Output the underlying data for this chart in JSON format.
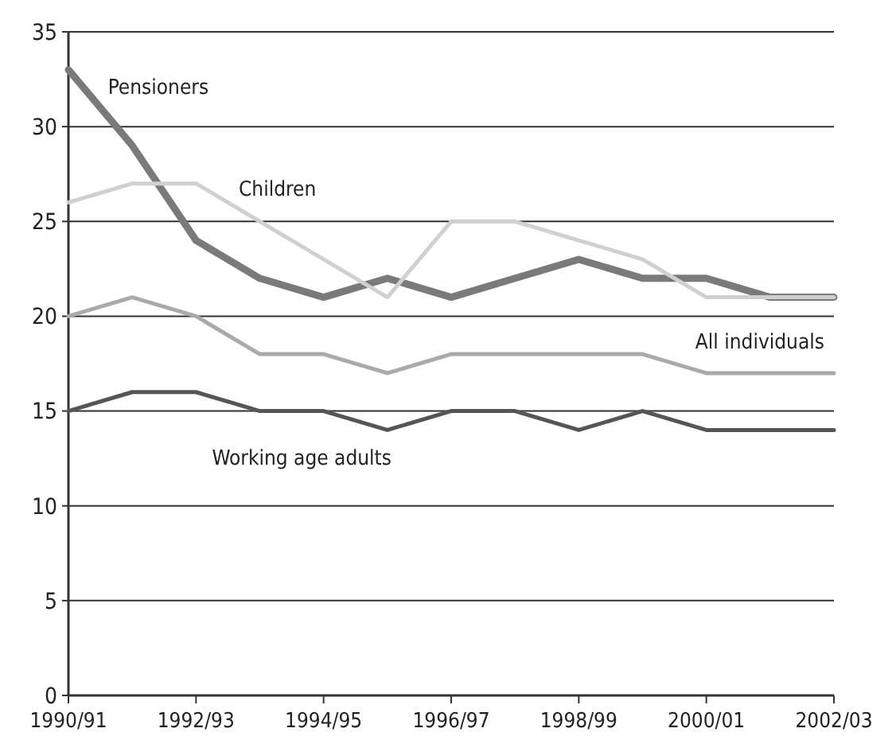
{
  "chart_data": {
    "type": "line",
    "categories": [
      "1990/91",
      null,
      "1992/93",
      null,
      "1994/95",
      null,
      "1996/97",
      null,
      "1998/99",
      null,
      "2000/01",
      null,
      "2002/03"
    ],
    "series": [
      {
        "name": "Pensioners",
        "color": "#7a7a7a",
        "values": [
          33,
          29,
          24,
          22,
          21,
          22,
          21,
          22,
          23,
          22,
          22,
          21,
          21
        ]
      },
      {
        "name": "Children",
        "color": "#d0d0d0",
        "values": [
          26,
          27,
          27,
          25,
          23,
          21,
          25,
          25,
          24,
          23,
          21,
          21,
          21
        ]
      },
      {
        "name": "All individuals",
        "color": "#aaaaaa",
        "values": [
          20,
          21,
          20,
          18,
          18,
          17,
          18,
          18,
          18,
          18,
          17,
          17,
          17
        ]
      },
      {
        "name": "Working age adults",
        "color": "#555555",
        "values": [
          15,
          16,
          16,
          15,
          15,
          14,
          15,
          15,
          14,
          15,
          14,
          14,
          14
        ]
      }
    ],
    "ylim": [
      0,
      35
    ],
    "yticks": [
      0,
      5,
      10,
      15,
      20,
      25,
      30,
      35
    ],
    "grid": "y",
    "marker": "none",
    "line_style": "solid"
  }
}
